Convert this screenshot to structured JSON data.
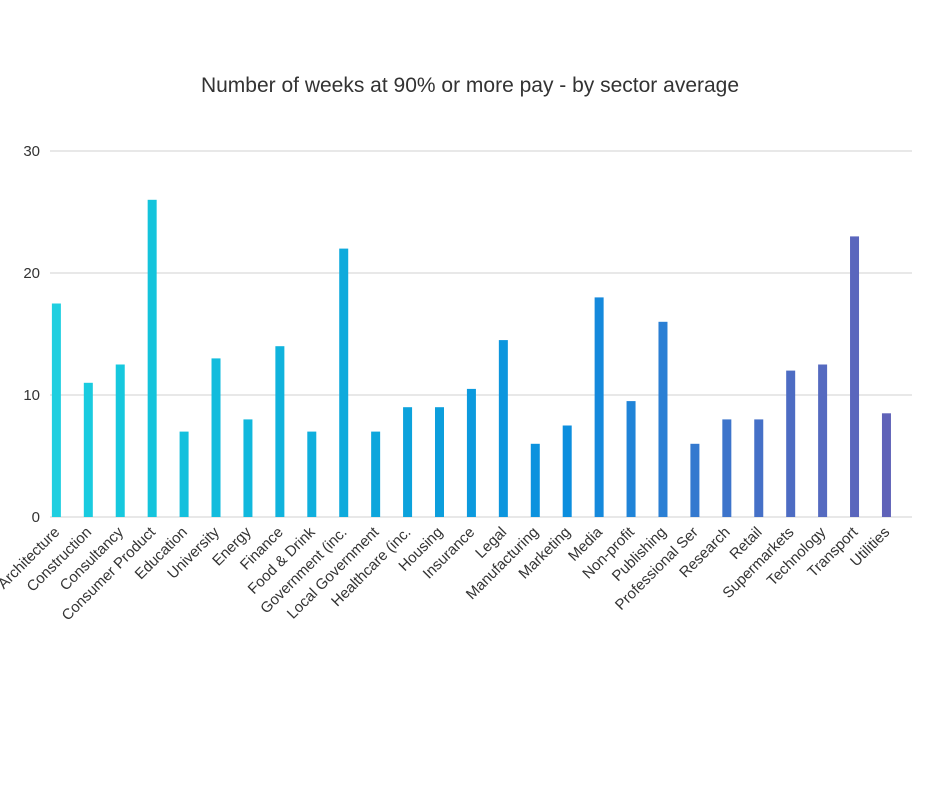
{
  "chart_data": {
    "type": "bar",
    "title": "Number of weeks at 90% or more pay - by sector average",
    "xlabel": "",
    "ylabel": "",
    "ylim": [
      0,
      30
    ],
    "yticks": [
      0,
      10,
      20,
      30
    ],
    "grid": true,
    "legend": "none",
    "categories": [
      "Architecture",
      "Construction",
      "Consultancy",
      "Consumer Product",
      "Education",
      "University",
      "Energy",
      "Finance",
      "Food & Drink",
      "Government (inc.",
      "Local Government",
      "Healthcare (inc.",
      "Housing",
      "Insurance",
      "Legal",
      "Manufacturing",
      "Marketing",
      "Media",
      "Non-profit",
      "Publishing",
      "Professional Ser",
      "Research",
      "Retail",
      "Supermarkets",
      "Technology",
      "Transport",
      "Utilities"
    ],
    "values": [
      17.5,
      11,
      12.5,
      26,
      7,
      13,
      8,
      14,
      7,
      22,
      7,
      9,
      9,
      10.5,
      14.5,
      6,
      7.5,
      18,
      9.5,
      16,
      6,
      8,
      8,
      12,
      12.5,
      23,
      8.5
    ],
    "bar_colors": [
      "#1fcfe0",
      "#19cbdf",
      "#16c8de",
      "#14c4dc",
      "#13c0dd",
      "#12bcdd",
      "#11b8dd",
      "#10b3dd",
      "#0fafdd",
      "#0eaadc",
      "#0da6dc",
      "#0ca2dc",
      "#0c9edc",
      "#0c9ade",
      "#0c96de",
      "#0c92de",
      "#0c8ede",
      "#1589dc",
      "#2084d8",
      "#2a7fd4",
      "#3479cf",
      "#3d74cb",
      "#4570c7",
      "#4d6cc3",
      "#556ac0",
      "#5a66bd",
      "#5f62b8"
    ],
    "gridline_color": "#d0d0d0",
    "text_color": "#333333"
  }
}
